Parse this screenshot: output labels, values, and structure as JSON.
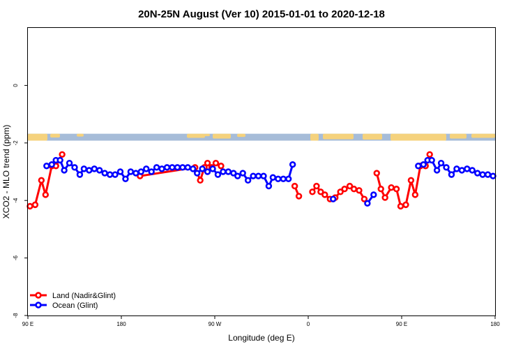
{
  "chart_data": {
    "type": "line",
    "title": "20N-25N August (Ver 10)   2015-01-01 to 2020-12-18",
    "xlabel": "Longitude (deg E)",
    "ylabel": "XCO2 - MLO trend (ppm)",
    "xlim": [
      90,
      540
    ],
    "ylim": [
      -8,
      2
    ],
    "x_ticks": [
      {
        "value": 90,
        "label": "90 E"
      },
      {
        "value": 180,
        "label": "180"
      },
      {
        "value": 270,
        "label": "90 W"
      },
      {
        "value": 360,
        "label": "0"
      },
      {
        "value": 450,
        "label": "90 E"
      },
      {
        "value": 540,
        "label": "180"
      }
    ],
    "y_ticks": [
      {
        "value": 0,
        "label": "0"
      },
      {
        "value": -2,
        "label": "-2"
      },
      {
        "value": -4,
        "label": "-4"
      },
      {
        "value": -6,
        "label": "-6"
      },
      {
        "value": -8,
        "label": "-8"
      }
    ],
    "map_strip": {
      "y_range": [
        -1.92,
        -1.68
      ],
      "ocean_color": "#a6bcd8",
      "land_color": "#f5d27d"
    },
    "legend_position": "bottom-left",
    "series": [
      {
        "name": "Land (Nadir&Glint)",
        "color": "#ff0000",
        "segments": [
          [
            [
              92,
              -4.2
            ],
            [
              97,
              -4.15
            ],
            [
              103,
              -3.3
            ],
            [
              107,
              -3.8
            ],
            [
              113,
              -2.8
            ],
            [
              117,
              -2.8
            ],
            [
              123,
              -2.4
            ]
          ],
          [
            [
              198,
              -3.15
            ],
            [
              251,
              -2.85
            ],
            [
              256,
              -3.3
            ],
            [
              260,
              -2.85
            ],
            [
              263,
              -2.7
            ],
            [
              267,
              -2.85
            ],
            [
              271,
              -2.7
            ],
            [
              276,
              -2.8
            ]
          ],
          [
            [
              347,
              -3.5
            ],
            [
              351,
              -3.85
            ]
          ],
          [
            [
              364,
              -3.7
            ],
            [
              368,
              -3.5
            ],
            [
              372,
              -3.7
            ],
            [
              376,
              -3.8
            ],
            [
              381,
              -3.95
            ],
            [
              386,
              -3.9
            ],
            [
              391,
              -3.7
            ],
            [
              395,
              -3.6
            ],
            [
              400,
              -3.5
            ],
            [
              404,
              -3.6
            ],
            [
              409,
              -3.65
            ],
            [
              414,
              -3.95
            ]
          ],
          [
            [
              426,
              -3.05
            ],
            [
              430,
              -3.6
            ],
            [
              434,
              -3.9
            ],
            [
              440,
              -3.55
            ],
            [
              445,
              -3.6
            ],
            [
              449,
              -4.2
            ],
            [
              454,
              -4.15
            ],
            [
              459,
              -3.3
            ],
            [
              463,
              -3.8
            ],
            [
              468,
              -2.8
            ],
            [
              473,
              -2.8
            ],
            [
              477,
              -2.4
            ]
          ]
        ]
      },
      {
        "name": "Ocean (Glint)",
        "color": "#0000ff",
        "segments": [
          [
            [
              108,
              -2.8
            ],
            [
              113,
              -2.75
            ],
            [
              117,
              -2.6
            ],
            [
              121,
              -2.6
            ],
            [
              125,
              -2.95
            ],
            [
              130,
              -2.7
            ],
            [
              135,
              -2.85
            ],
            [
              140,
              -3.1
            ],
            [
              144,
              -2.9
            ],
            [
              149,
              -2.95
            ],
            [
              154,
              -2.9
            ],
            [
              159,
              -2.95
            ],
            [
              164,
              -3.05
            ],
            [
              169,
              -3.1
            ],
            [
              174,
              -3.1
            ],
            [
              179,
              -3.0
            ],
            [
              184,
              -3.25
            ],
            [
              189,
              -3.0
            ],
            [
              194,
              -3.05
            ],
            [
              199,
              -3.0
            ],
            [
              204,
              -2.9
            ],
            [
              209,
              -3.0
            ],
            [
              214,
              -2.85
            ],
            [
              219,
              -2.9
            ],
            [
              224,
              -2.85
            ],
            [
              229,
              -2.85
            ],
            [
              234,
              -2.85
            ],
            [
              239,
              -2.85
            ],
            [
              244,
              -2.85
            ],
            [
              249,
              -2.9
            ],
            [
              253,
              -3.05
            ],
            [
              258,
              -2.9
            ],
            [
              263,
              -3.0
            ],
            [
              268,
              -2.9
            ],
            [
              273,
              -3.1
            ],
            [
              278,
              -3.0
            ],
            [
              283,
              -3.0
            ],
            [
              288,
              -3.05
            ],
            [
              292,
              -3.15
            ],
            [
              297,
              -3.05
            ],
            [
              302,
              -3.3
            ],
            [
              307,
              -3.15
            ],
            [
              312,
              -3.15
            ],
            [
              317,
              -3.15
            ],
            [
              322,
              -3.5
            ],
            [
              326,
              -3.2
            ],
            [
              331,
              -3.25
            ],
            [
              336,
              -3.25
            ],
            [
              341,
              -3.25
            ],
            [
              345,
              -2.75
            ]
          ],
          [
            [
              384,
              -3.95
            ]
          ],
          [
            [
              417,
              -4.1
            ],
            [
              423,
              -3.8
            ]
          ],
          [
            [
              466,
              -2.8
            ],
            [
              471,
              -2.75
            ],
            [
              475,
              -2.6
            ],
            [
              479,
              -2.6
            ],
            [
              484,
              -2.95
            ],
            [
              488,
              -2.7
            ],
            [
              493,
              -2.85
            ],
            [
              498,
              -3.1
            ],
            [
              503,
              -2.9
            ],
            [
              508,
              -2.95
            ],
            [
              513,
              -2.9
            ],
            [
              518,
              -2.95
            ],
            [
              523,
              -3.05
            ],
            [
              528,
              -3.1
            ],
            [
              533,
              -3.1
            ],
            [
              538,
              -3.15
            ]
          ]
        ]
      }
    ]
  }
}
